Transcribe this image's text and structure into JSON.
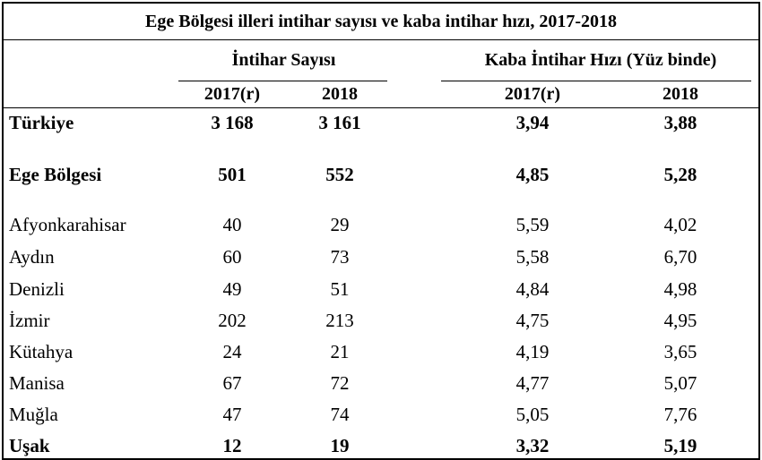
{
  "title": "Ege Bölgesi illeri intihar sayısı ve kaba intihar hızı, 2017-2018",
  "groups": {
    "count": "İntihar Sayısı",
    "rate": "Kaba İntihar Hızı (Yüz binde)"
  },
  "years": {
    "count_2017": "2017(r)",
    "count_2018": "2018",
    "rate_2017": "2017(r)",
    "rate_2018": "2018"
  },
  "rows": [
    {
      "name": "Türkiye",
      "c2017": "3 168",
      "c2018": "3 161",
      "r2017": "3,94",
      "r2018": "3,88"
    },
    {
      "name": "Ege Bölgesi",
      "c2017": "501",
      "c2018": "552",
      "r2017": "4,85",
      "r2018": "5,28"
    },
    {
      "name": "Afyonkarahisar",
      "c2017": "40",
      "c2018": "29",
      "r2017": "5,59",
      "r2018": "4,02"
    },
    {
      "name": "Aydın",
      "c2017": "60",
      "c2018": "73",
      "r2017": "5,58",
      "r2018": "6,70"
    },
    {
      "name": "Denizli",
      "c2017": "49",
      "c2018": "51",
      "r2017": "4,84",
      "r2018": "4,98"
    },
    {
      "name": "İzmir",
      "c2017": "202",
      "c2018": "213",
      "r2017": "4,75",
      "r2018": "4,95"
    },
    {
      "name": "Kütahya",
      "c2017": "24",
      "c2018": "21",
      "r2017": "4,19",
      "r2018": "3,65"
    },
    {
      "name": "Manisa",
      "c2017": "67",
      "c2018": "72",
      "r2017": "4,77",
      "r2018": "5,07"
    },
    {
      "name": "Muğla",
      "c2017": "47",
      "c2018": "74",
      "r2017": "5,05",
      "r2018": "7,76"
    },
    {
      "name": "Uşak",
      "c2017": "12",
      "c2018": "19",
      "r2017": "3,32",
      "r2018": "5,19"
    }
  ]
}
